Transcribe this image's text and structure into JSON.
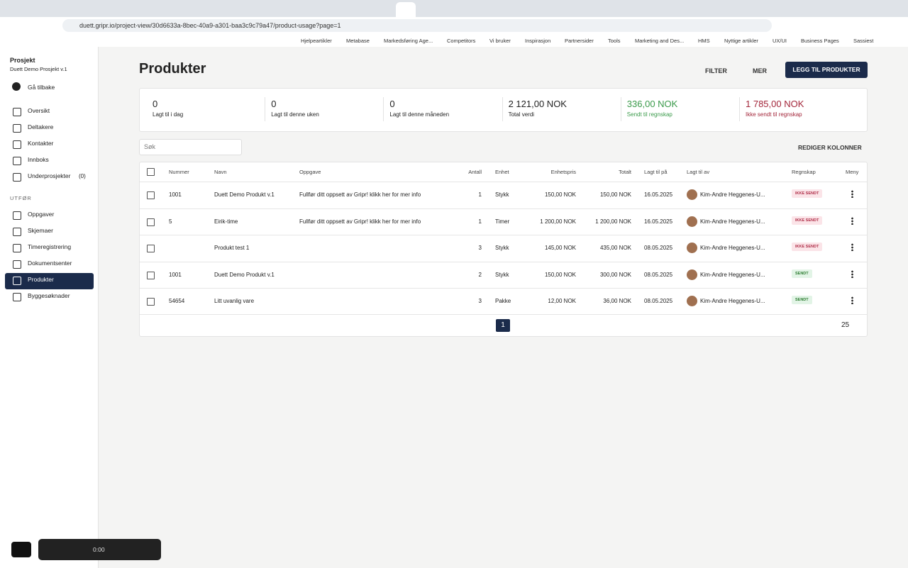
{
  "browser": {
    "url": "duett.gripr.io/project-view/30d6633a-8bec-40a9-a301-baa3c9c79a47/product-usage?page=1",
    "bookmarks": [
      "Hjelpeartikler",
      "Metabase",
      "Markedsføring Age...",
      "Competitors",
      "Vi bruker",
      "Inspirasjon",
      "Partnersider",
      "Tools",
      "Marketing and Des...",
      "HMS",
      "Nyttige artikler",
      "UX/UI",
      "Business Pages",
      "Sassiest"
    ]
  },
  "sidebar": {
    "project_label": "Prosjekt",
    "project_name": "Duett Demo Prosjekt v.1",
    "back": "Gå tilbake",
    "nav": [
      "Oversikt",
      "Deltakere",
      "Kontakter",
      "Innboks",
      "Underprosjekter"
    ],
    "sub_count": "(0)",
    "section": "UTFØR",
    "nav2": [
      "Oppgaver",
      "Skjemaer",
      "Timeregistrering",
      "Dokumentsenter",
      "Produkter",
      "Byggesøknader"
    ]
  },
  "header": {
    "title": "Produkter",
    "filter": "FILTER",
    "more": "MER",
    "add": "LEGG TIL PRODUKTER"
  },
  "stats": [
    {
      "value": "0",
      "label": "Lagt til i dag"
    },
    {
      "value": "0",
      "label": "Lagt til denne uken"
    },
    {
      "value": "0",
      "label": "Lagt til denne måneden"
    },
    {
      "value": "2 121,00 NOK",
      "label": "Total verdi"
    },
    {
      "value": "336,00 NOK",
      "label": "Sendt til regnskap"
    },
    {
      "value": "1 785,00 NOK",
      "label": "Ikke sendt til regnskap"
    }
  ],
  "toolbar": {
    "search": "Søk",
    "edit_columns": "REDIGER KOLONNER"
  },
  "table": {
    "columns": [
      "Nummer",
      "Navn",
      "Oppgave",
      "Antall",
      "Enhet",
      "Enhetspris",
      "Totalt",
      "Lagt til på",
      "Lagt til av",
      "Regnskap",
      "Meny"
    ],
    "rows": [
      [
        "1001",
        "Duett Demo Produkt v.1",
        "Fullfør ditt oppsett av Gripr! klikk her for mer info",
        "1",
        "Stykk",
        "150,00 NOK",
        "150,00 NOK",
        "16.05.2025",
        "Kim-Andre Heggenes-U...",
        "IKKE SENDT"
      ],
      [
        "5",
        "Eirik-time",
        "Fullfør ditt oppsett av Gripr! klikk her for mer info",
        "1",
        "Timer",
        "1 200,00 NOK",
        "1 200,00 NOK",
        "16.05.2025",
        "Kim-Andre Heggenes-U...",
        "IKKE SENDT"
      ],
      [
        "",
        "Produkt test 1",
        "",
        "3",
        "Stykk",
        "145,00 NOK",
        "435,00 NOK",
        "08.05.2025",
        "Kim-Andre Heggenes-U...",
        "IKKE SENDT"
      ],
      [
        "1001",
        "Duett Demo Produkt v.1",
        "",
        "2",
        "Stykk",
        "150,00 NOK",
        "300,00 NOK",
        "08.05.2025",
        "Kim-Andre Heggenes-U...",
        "SENDT"
      ],
      [
        "54654",
        "Litt uvanlig vare",
        "",
        "3",
        "Pakke",
        "12,00 NOK",
        "36,00 NOK",
        "08.05.2025",
        "Kim-Andre Heggenes-U...",
        "SENDT"
      ]
    ]
  },
  "pagination": {
    "page": "1",
    "per_page": "25"
  },
  "recorder": {
    "time": "0:00"
  }
}
